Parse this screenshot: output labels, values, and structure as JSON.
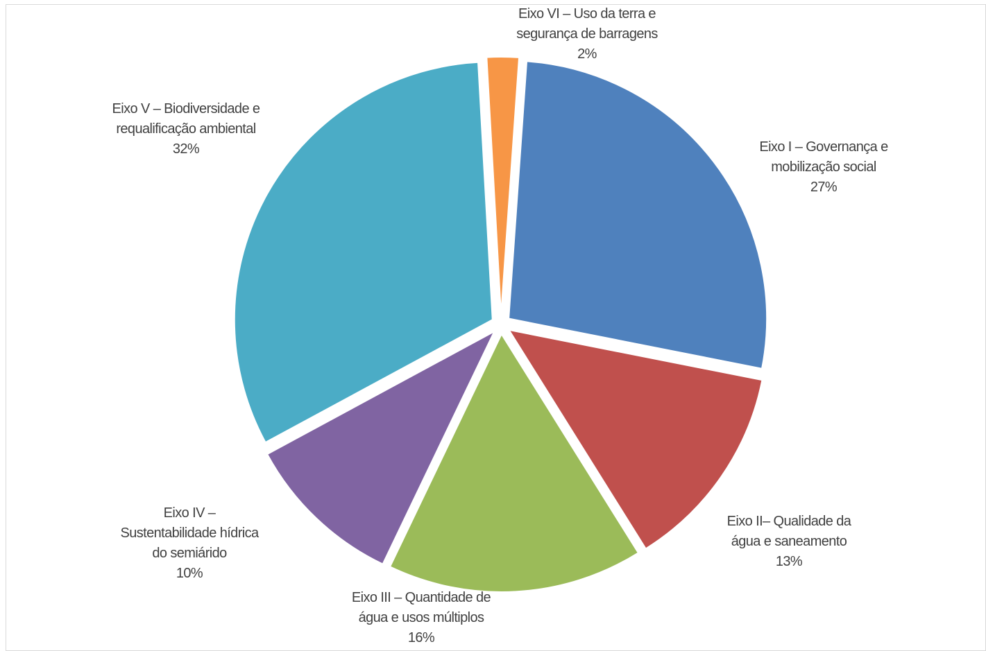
{
  "chart_data": {
    "type": "pie",
    "title": "",
    "slices": [
      {
        "label": [
          "Eixo I – Governança e",
          "mobilização social"
        ],
        "value": 27,
        "pct_label": "27%",
        "color": "#4f81bd"
      },
      {
        "label": [
          "Eixo II– Qualidade da",
          "água e saneamento"
        ],
        "value": 13,
        "pct_label": "13%",
        "color": "#c0504d"
      },
      {
        "label": [
          "Eixo III – Quantidade de",
          "água e usos múltiplos"
        ],
        "value": 16,
        "pct_label": "16%",
        "color": "#9bbb59"
      },
      {
        "label": [
          "Eixo IV –",
          "Sustentabilidade hídrica",
          "do semiárido"
        ],
        "value": 10,
        "pct_label": "10%",
        "color": "#8064a2"
      },
      {
        "label": [
          "Eixo V – Biodiversidade e",
          "requalificação ambiental"
        ],
        "value": 32,
        "pct_label": "32%",
        "color": "#4bacc6"
      },
      {
        "label": [
          "Eixo VI – Uso da terra e",
          "segurança de barragens"
        ],
        "value": 2,
        "pct_label": "2%",
        "color": "#f79646"
      }
    ],
    "legend": "none",
    "data_labels": "outside"
  }
}
